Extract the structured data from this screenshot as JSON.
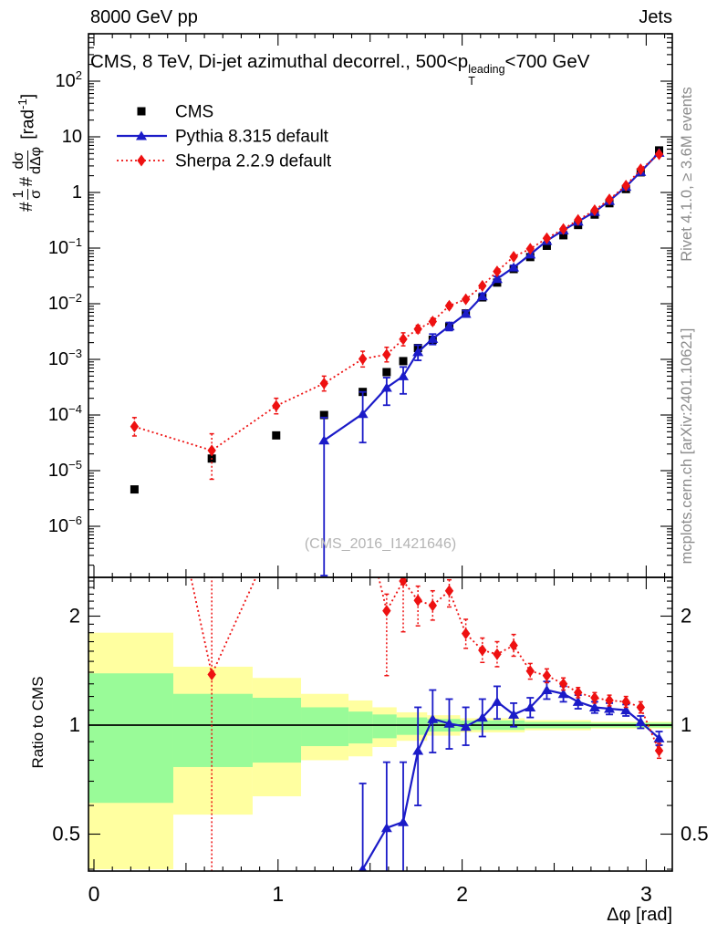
{
  "header": {
    "left": "8000 GeV pp",
    "right": "Jets"
  },
  "title": {
    "pre": "CMS, 8 TeV, Di-jet azimuthal decorrel., 500<p",
    "sup": "leading",
    "sub": "T",
    "post": "<700 GeV"
  },
  "watermark": "(CMS_2016_I1421646)",
  "side_notes": {
    "top": "Rivet 4.1.0, ≥ 3.6M events",
    "bottom": "mcplots.cern.ch [arXiv:2401.10621]"
  },
  "colors": {
    "cms": "#000000",
    "pythia": "#1b1bc8",
    "sherpa": "#ee1111",
    "band_yellow": "#ffffa0",
    "band_green": "#99fb98",
    "frame": "#000000",
    "gray_text": "#8c8c8c",
    "watermark_gray": "#b4b4b4"
  },
  "legend": [
    {
      "label": "CMS",
      "marker": "square",
      "color": "#000000",
      "line": "none"
    },
    {
      "label": "Pythia 8.315 default",
      "marker": "triangle",
      "color": "#1b1bc8",
      "line": "solid"
    },
    {
      "label": "Sherpa 2.2.9 default",
      "marker": "diamond",
      "color": "#ee1111",
      "line": "dotted"
    }
  ],
  "axes": {
    "x": {
      "label": "Δφ [rad]",
      "min": -0.03,
      "max": 3.1416,
      "major_ticks": [
        0,
        1,
        2,
        3
      ],
      "minor_step": 0.1,
      "mid_step": 0.5
    },
    "y_top": {
      "label_parts": {
        "hash1": "#",
        "num1": "1",
        "den1": "σ",
        "hash2": "#",
        "num2": "dσ",
        "den2": "dΔφ",
        "units_pre": "[rad",
        "units_sup": "-1",
        "units_post": "]"
      },
      "scale": "log10",
      "decade_min": -7,
      "decade_max": 2,
      "label_decades": [
        2,
        1,
        0,
        -1,
        -2,
        -3,
        -4,
        -5,
        -6
      ]
    },
    "y_bottom": {
      "label": "Ratio to CMS",
      "scale": "log2",
      "min": 0.395,
      "max": 2.56,
      "tick_labels": [
        2,
        1,
        0.5
      ]
    }
  },
  "chart_data": [
    {
      "type": "scatter",
      "panel": "main",
      "title": "CMS, 8 TeV, Di-jet azimuthal decorrel., 500<pT(leading)<700 GeV",
      "xlabel": "Δφ [rad]",
      "ylabel": "1/σ dσ/dΔφ [rad^-1]",
      "xlim": [
        -0.03,
        3.1416
      ],
      "ylim": [
        1.2e-07,
        700
      ],
      "yscale": "log",
      "legend_position": "upper left",
      "series": [
        {
          "name": "CMS",
          "marker": "square",
          "color": "#000000",
          "points": [
            {
              "x": 0.22,
              "y": 4.6e-06
            },
            {
              "x": 0.64,
              "y": 1.65e-05
            },
            {
              "x": 0.99,
              "y": 4.3e-05
            },
            {
              "x": 1.25,
              "y": 0.0001
            },
            {
              "x": 1.46,
              "y": 0.00026
            },
            {
              "x": 1.59,
              "y": 0.00059
            },
            {
              "x": 1.68,
              "y": 0.00093
            },
            {
              "x": 1.76,
              "y": 0.0016
            },
            {
              "x": 1.84,
              "y": 0.00225
            },
            {
              "x": 1.93,
              "y": 0.0039
            },
            {
              "x": 2.02,
              "y": 0.0067
            },
            {
              "x": 2.11,
              "y": 0.013
            },
            {
              "x": 2.19,
              "y": 0.024
            },
            {
              "x": 2.28,
              "y": 0.042
            },
            {
              "x": 2.37,
              "y": 0.069
            },
            {
              "x": 2.46,
              "y": 0.11
            },
            {
              "x": 2.55,
              "y": 0.17
            },
            {
              "x": 2.63,
              "y": 0.26
            },
            {
              "x": 2.72,
              "y": 0.4
            },
            {
              "x": 2.8,
              "y": 0.64
            },
            {
              "x": 2.89,
              "y": 1.15
            },
            {
              "x": 2.97,
              "y": 2.3
            },
            {
              "x": 3.07,
              "y": 5.7
            }
          ]
        },
        {
          "name": "Pythia 8.315 default",
          "marker": "triangle",
          "color": "#1b1bc8",
          "line": "solid",
          "points": [
            {
              "x": 1.25,
              "y": 3.5e-05,
              "lo": 1.3e-07,
              "hi": 9e-05
            },
            {
              "x": 1.46,
              "y": 0.000105,
              "lo": 3.2e-05,
              "hi": 0.00026
            },
            {
              "x": 1.59,
              "y": 0.00031,
              "lo": 0.00015,
              "hi": 0.00047
            },
            {
              "x": 1.68,
              "y": 0.0005,
              "lo": 0.00024,
              "hi": 0.00073
            },
            {
              "x": 1.76,
              "y": 0.00136,
              "lo": 0.00096,
              "hi": 0.0018
            },
            {
              "x": 1.84,
              "y": 0.00235,
              "lo": 0.00185,
              "hi": 0.00285
            },
            {
              "x": 1.93,
              "y": 0.00395,
              "lo": 0.0033,
              "hi": 0.0046
            },
            {
              "x": 2.02,
              "y": 0.0066,
              "lo": 0.0058,
              "hi": 0.0075
            },
            {
              "x": 2.11,
              "y": 0.0137,
              "lo": 0.0122,
              "hi": 0.0154
            },
            {
              "x": 2.19,
              "y": 0.028,
              "lo": 0.025,
              "hi": 0.031
            },
            {
              "x": 2.28,
              "y": 0.045,
              "lo": 0.041,
              "hi": 0.049
            },
            {
              "x": 2.37,
              "y": 0.077
            },
            {
              "x": 2.46,
              "y": 0.135
            },
            {
              "x": 2.55,
              "y": 0.21
            },
            {
              "x": 2.63,
              "y": 0.3
            },
            {
              "x": 2.72,
              "y": 0.45
            },
            {
              "x": 2.8,
              "y": 0.71
            },
            {
              "x": 2.89,
              "y": 1.27
            },
            {
              "x": 2.97,
              "y": 2.35
            },
            {
              "x": 3.07,
              "y": 5.2
            }
          ]
        },
        {
          "name": "Sherpa 2.2.9 default",
          "marker": "diamond",
          "color": "#ee1111",
          "line": "dotted",
          "points": [
            {
              "x": 0.22,
              "y": 6.2e-05,
              "lo": 4.2e-05,
              "hi": 9e-05
            },
            {
              "x": 0.64,
              "y": 2.3e-05,
              "lo": 7e-06,
              "hi": 4.6e-05
            },
            {
              "x": 0.99,
              "y": 0.000146,
              "lo": 0.000105,
              "hi": 0.0002
            },
            {
              "x": 1.25,
              "y": 0.00037,
              "lo": 0.00027,
              "hi": 0.0005
            },
            {
              "x": 1.46,
              "y": 0.00102,
              "lo": 0.00073,
              "hi": 0.0014
            },
            {
              "x": 1.59,
              "y": 0.00122,
              "lo": 0.0009,
              "hi": 0.00165
            },
            {
              "x": 1.68,
              "y": 0.0023,
              "lo": 0.00175,
              "hi": 0.003
            },
            {
              "x": 1.76,
              "y": 0.0035,
              "lo": 0.003,
              "hi": 0.0041
            },
            {
              "x": 1.84,
              "y": 0.0048,
              "lo": 0.0042,
              "hi": 0.0055
            },
            {
              "x": 1.93,
              "y": 0.0092,
              "lo": 0.0082,
              "hi": 0.0103
            },
            {
              "x": 2.02,
              "y": 0.012
            },
            {
              "x": 2.11,
              "y": 0.021
            },
            {
              "x": 2.19,
              "y": 0.038
            },
            {
              "x": 2.28,
              "y": 0.07
            },
            {
              "x": 2.37,
              "y": 0.097
            },
            {
              "x": 2.46,
              "y": 0.15
            },
            {
              "x": 2.55,
              "y": 0.22
            },
            {
              "x": 2.63,
              "y": 0.32
            },
            {
              "x": 2.72,
              "y": 0.48
            },
            {
              "x": 2.8,
              "y": 0.75
            },
            {
              "x": 2.89,
              "y": 1.33
            },
            {
              "x": 2.97,
              "y": 2.6
            },
            {
              "x": 3.07,
              "y": 4.85
            }
          ]
        }
      ]
    },
    {
      "type": "scatter",
      "panel": "ratio",
      "ylabel": "Ratio to CMS",
      "xlim": [
        -0.03,
        3.1416
      ],
      "ylim": [
        0.395,
        2.56
      ],
      "yscale": "log",
      "reference_line": 1.0,
      "bands": [
        {
          "x0": -0.03,
          "x1": 0.431,
          "yellow": [
            0.4,
            1.8
          ],
          "green": [
            0.61,
            1.39
          ]
        },
        {
          "x0": 0.431,
          "x1": 0.862,
          "yellow": [
            0.566,
            1.45
          ],
          "green": [
            0.766,
            1.22
          ]
        },
        {
          "x0": 0.862,
          "x1": 1.125,
          "yellow": [
            0.636,
            1.35
          ],
          "green": [
            0.788,
            1.19
          ]
        },
        {
          "x0": 1.125,
          "x1": 1.383,
          "yellow": [
            0.8,
            1.22
          ],
          "green": [
            0.875,
            1.12
          ]
        },
        {
          "x0": 1.383,
          "x1": 1.513,
          "yellow": [
            0.82,
            1.17
          ],
          "green": [
            0.89,
            1.09
          ]
        },
        {
          "x0": 1.513,
          "x1": 1.644,
          "yellow": [
            0.87,
            1.12
          ],
          "green": [
            0.92,
            1.07
          ]
        },
        {
          "x0": 1.644,
          "x1": 1.81,
          "yellow": [
            0.905,
            1.085
          ],
          "green": [
            0.94,
            1.05
          ]
        },
        {
          "x0": 1.81,
          "x1": 1.99,
          "yellow": [
            0.935,
            1.065
          ],
          "green": [
            0.96,
            1.04
          ]
        },
        {
          "x0": 1.99,
          "x1": 2.34,
          "yellow": [
            0.955,
            1.045
          ],
          "green": [
            0.97,
            1.03
          ]
        },
        {
          "x0": 2.34,
          "x1": 2.7,
          "yellow": [
            0.968,
            1.032
          ],
          "green": [
            0.98,
            1.02
          ]
        },
        {
          "x0": 2.7,
          "x1": 3.1416,
          "yellow": [
            0.978,
            1.022
          ],
          "green": [
            0.985,
            1.015
          ]
        }
      ],
      "series": [
        {
          "name": "Pythia 8.315 default / CMS",
          "marker": "triangle",
          "color": "#1b1bc8",
          "line": "solid",
          "points": [
            {
              "x": 1.25,
              "y": 0.35
            },
            {
              "x": 1.46,
              "y": 0.4,
              "lo": 0.25,
              "hi": 0.69
            },
            {
              "x": 1.59,
              "y": 0.52,
              "lo": 0.3,
              "hi": 0.79
            },
            {
              "x": 1.68,
              "y": 0.54,
              "lo": 0.32,
              "hi": 0.79
            },
            {
              "x": 1.76,
              "y": 0.85,
              "lo": 0.6,
              "hi": 1.12
            },
            {
              "x": 1.84,
              "y": 1.04,
              "lo": 0.84,
              "hi": 1.25
            },
            {
              "x": 1.93,
              "y": 1.01,
              "lo": 0.86,
              "hi": 1.18
            },
            {
              "x": 2.02,
              "y": 0.99,
              "lo": 0.88,
              "hi": 1.12
            },
            {
              "x": 2.11,
              "y": 1.05,
              "lo": 0.93,
              "hi": 1.18
            },
            {
              "x": 2.19,
              "y": 1.16,
              "lo": 1.04,
              "hi": 1.28
            },
            {
              "x": 2.28,
              "y": 1.07,
              "lo": 0.99,
              "hi": 1.15
            },
            {
              "x": 2.37,
              "y": 1.12,
              "lo": 1.05,
              "hi": 1.19
            },
            {
              "x": 2.46,
              "y": 1.25,
              "lo": 1.18,
              "hi": 1.32
            },
            {
              "x": 2.55,
              "y": 1.22,
              "lo": 1.16,
              "hi": 1.28
            },
            {
              "x": 2.63,
              "y": 1.16,
              "lo": 1.11,
              "hi": 1.21
            },
            {
              "x": 2.72,
              "y": 1.12,
              "lo": 1.08,
              "hi": 1.16
            },
            {
              "x": 2.8,
              "y": 1.11,
              "lo": 1.07,
              "hi": 1.15
            },
            {
              "x": 2.89,
              "y": 1.1,
              "lo": 1.06,
              "hi": 1.14
            },
            {
              "x": 2.97,
              "y": 1.02,
              "lo": 0.98,
              "hi": 1.06
            },
            {
              "x": 3.07,
              "y": 0.92,
              "lo": 0.88,
              "hi": 0.96
            }
          ]
        },
        {
          "name": "Sherpa 2.2.9 default / CMS",
          "marker": "diamond",
          "color": "#ee1111",
          "line": "dotted",
          "points": [
            {
              "x": 0.22,
              "y": 13.5
            },
            {
              "x": 0.64,
              "y": 1.38,
              "lo": 0.2,
              "hi": 3.0
            },
            {
              "x": 0.99,
              "y": 3.4
            },
            {
              "x": 1.25,
              "y": 3.7
            },
            {
              "x": 1.46,
              "y": 3.9
            },
            {
              "x": 1.59,
              "y": 2.07,
              "lo": 1.37,
              "hi": 2.3
            },
            {
              "x": 1.68,
              "y": 2.5,
              "lo": 1.81,
              "hi": 3.2
            },
            {
              "x": 1.76,
              "y": 2.21,
              "lo": 1.88,
              "hi": 2.42
            },
            {
              "x": 1.84,
              "y": 2.14,
              "lo": 1.95,
              "hi": 2.35
            },
            {
              "x": 1.93,
              "y": 2.35,
              "lo": 2.12,
              "hi": 2.52
            },
            {
              "x": 2.02,
              "y": 1.79,
              "lo": 1.63,
              "hi": 1.96
            },
            {
              "x": 2.11,
              "y": 1.61,
              "lo": 1.49,
              "hi": 1.74
            },
            {
              "x": 2.19,
              "y": 1.57,
              "lo": 1.45,
              "hi": 1.7
            },
            {
              "x": 2.28,
              "y": 1.66,
              "lo": 1.55,
              "hi": 1.78
            },
            {
              "x": 2.37,
              "y": 1.41,
              "lo": 1.34,
              "hi": 1.48
            },
            {
              "x": 2.46,
              "y": 1.37,
              "lo": 1.31,
              "hi": 1.43
            },
            {
              "x": 2.55,
              "y": 1.3,
              "lo": 1.25,
              "hi": 1.35
            },
            {
              "x": 2.63,
              "y": 1.23,
              "lo": 1.19,
              "hi": 1.27
            },
            {
              "x": 2.72,
              "y": 1.19,
              "lo": 1.15,
              "hi": 1.23
            },
            {
              "x": 2.8,
              "y": 1.17,
              "lo": 1.13,
              "hi": 1.21
            },
            {
              "x": 2.89,
              "y": 1.16,
              "lo": 1.12,
              "hi": 1.2
            },
            {
              "x": 2.97,
              "y": 1.12,
              "lo": 1.08,
              "hi": 1.16
            },
            {
              "x": 3.07,
              "y": 0.85,
              "lo": 0.81,
              "hi": 0.89
            }
          ]
        }
      ]
    }
  ]
}
